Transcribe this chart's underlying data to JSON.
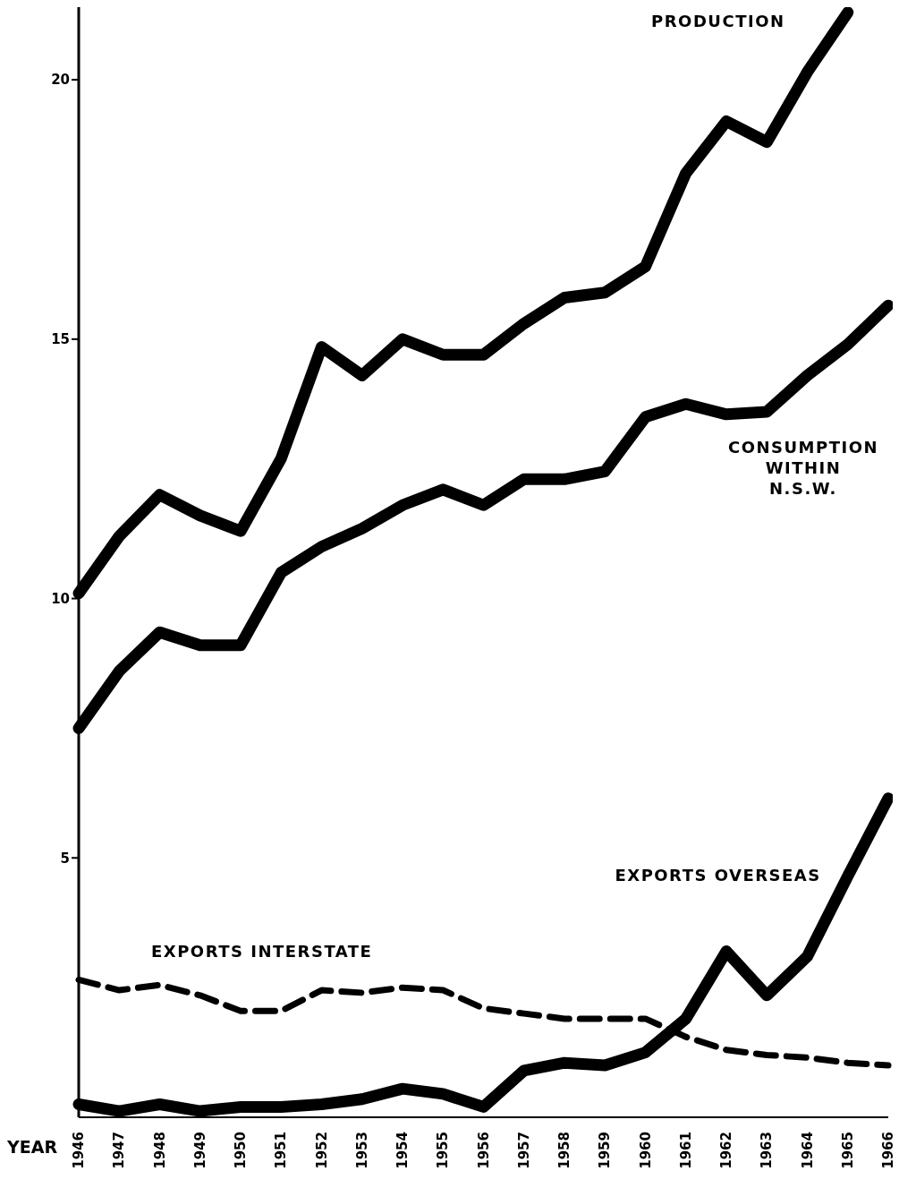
{
  "chart_data": {
    "type": "line",
    "xlabel": "YEAR",
    "categories": [
      "1946",
      "1947",
      "1948",
      "1949",
      "1950",
      "1951",
      "1952",
      "1953",
      "1954",
      "1955",
      "1956",
      "1957",
      "1958",
      "1959",
      "1960",
      "1961",
      "1962",
      "1963",
      "1964",
      "1965",
      "1966"
    ],
    "ylim": [
      0,
      21.4
    ],
    "yticks": [
      5,
      10,
      15,
      20
    ],
    "grid": false,
    "legend": false,
    "marker": "none",
    "line_style": "solid",
    "series": [
      {
        "name": "PRODUCTION",
        "color": "#000000",
        "values": [
          10.1,
          11.2,
          12.0,
          11.6,
          11.3,
          12.7,
          14.85,
          14.3,
          15.0,
          14.7,
          14.7,
          15.3,
          15.8,
          15.9,
          16.4,
          18.2,
          19.2,
          18.8,
          20.15,
          21.3,
          null
        ]
      },
      {
        "name": "CONSUMPTION WITHIN N.S.W.",
        "color": "#000000",
        "values": [
          7.5,
          8.6,
          9.35,
          9.1,
          9.1,
          10.5,
          11.0,
          11.35,
          11.8,
          12.1,
          11.8,
          12.3,
          12.3,
          12.45,
          13.5,
          13.75,
          13.55,
          13.6,
          14.3,
          14.9,
          15.65
        ]
      },
      {
        "name": "EXPORTS OVERSEAS",
        "color": "#000000",
        "values": [
          0.25,
          0.12,
          0.25,
          0.12,
          0.2,
          0.2,
          0.25,
          0.35,
          0.55,
          0.45,
          0.2,
          0.9,
          1.05,
          1.0,
          1.25,
          1.9,
          3.2,
          2.35,
          3.1,
          4.65,
          6.15
        ]
      },
      {
        "name": "EXPORTS INTERSTATE",
        "color": "#000000",
        "line_style": "dashed",
        "values": [
          2.65,
          2.45,
          2.55,
          2.35,
          2.05,
          2.05,
          2.45,
          2.4,
          2.5,
          2.45,
          2.1,
          2.0,
          1.9,
          1.9,
          1.9,
          1.55,
          1.3,
          1.2,
          1.15,
          1.05,
          1.0
        ]
      }
    ]
  }
}
